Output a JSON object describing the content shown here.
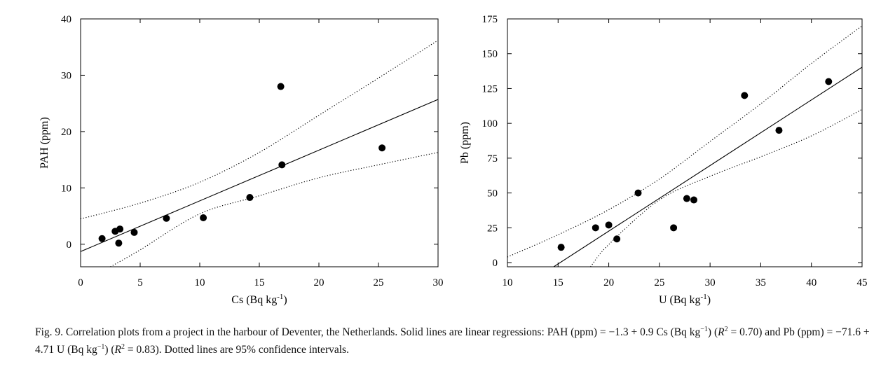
{
  "chart_data": [
    {
      "type": "scatter",
      "xlabel": "Cs (Bq kg",
      "xlabel_sup": "-1",
      "xlabel_end": ")",
      "ylabel": "PAH (ppm)",
      "xlim": [
        0,
        30
      ],
      "ylim": [
        -4,
        40
      ],
      "xticks": [
        0,
        5,
        10,
        15,
        20,
        25,
        30
      ],
      "yticks": [
        0,
        10,
        20,
        30,
        40
      ],
      "points": [
        {
          "x": 1.8,
          "y": 1.0
        },
        {
          "x": 2.9,
          "y": 2.3
        },
        {
          "x": 3.2,
          "y": 0.2
        },
        {
          "x": 3.3,
          "y": 2.7
        },
        {
          "x": 4.5,
          "y": 2.1
        },
        {
          "x": 7.2,
          "y": 4.6
        },
        {
          "x": 10.3,
          "y": 4.7
        },
        {
          "x": 14.2,
          "y": 8.3
        },
        {
          "x": 16.8,
          "y": 28.0
        },
        {
          "x": 16.9,
          "y": 14.1
        },
        {
          "x": 25.3,
          "y": 17.1
        }
      ],
      "regression": {
        "intercept": -1.3,
        "slope": 0.9
      },
      "ci_upper": [
        [
          0,
          4.5
        ],
        [
          5,
          7.3
        ],
        [
          10,
          11.0
        ],
        [
          15,
          16.3
        ],
        [
          20,
          22.9
        ],
        [
          25,
          29.5
        ],
        [
          30,
          36.2
        ]
      ],
      "ci_lower": [
        [
          2.5,
          -4.0
        ],
        [
          5,
          -1.0
        ],
        [
          10,
          5.4
        ],
        [
          15,
          8.6
        ],
        [
          20,
          11.8
        ],
        [
          25,
          14.1
        ],
        [
          30,
          16.3
        ]
      ]
    },
    {
      "type": "scatter",
      "xlabel": "U (Bq kg",
      "xlabel_sup": "-1",
      "xlabel_end": ")",
      "ylabel": "Pb (ppm)",
      "xlim": [
        10,
        45
      ],
      "ylim": [
        -3,
        175
      ],
      "xticks": [
        10,
        15,
        20,
        25,
        30,
        35,
        40,
        45
      ],
      "yticks": [
        0,
        25,
        50,
        75,
        100,
        125,
        150,
        175
      ],
      "points": [
        {
          "x": 15.3,
          "y": 11
        },
        {
          "x": 18.7,
          "y": 25
        },
        {
          "x": 20.0,
          "y": 27
        },
        {
          "x": 20.8,
          "y": 17
        },
        {
          "x": 22.9,
          "y": 50
        },
        {
          "x": 26.4,
          "y": 25
        },
        {
          "x": 27.7,
          "y": 46
        },
        {
          "x": 28.4,
          "y": 45
        },
        {
          "x": 33.4,
          "y": 120
        },
        {
          "x": 36.8,
          "y": 95
        },
        {
          "x": 41.7,
          "y": 130
        }
      ],
      "regression": {
        "intercept": -71.6,
        "slope": 4.71
      },
      "ci_upper": [
        [
          10,
          4
        ],
        [
          15,
          20
        ],
        [
          20,
          38
        ],
        [
          25,
          60
        ],
        [
          30,
          87
        ],
        [
          35,
          114
        ],
        [
          40,
          143
        ],
        [
          45,
          170
        ]
      ],
      "ci_lower": [
        [
          18.2,
          -3
        ],
        [
          20,
          13
        ],
        [
          25,
          45
        ],
        [
          30,
          62
        ],
        [
          35,
          76
        ],
        [
          40,
          91
        ],
        [
          45,
          110
        ]
      ]
    }
  ],
  "caption": {
    "prefix": "Fig. 9. Correlation plots from a project in the harbour of Deventer, the Netherlands. Solid lines are linear regressions: PAH (ppm) = −1.3 + 0.9 Cs (Bq kg",
    "sup1": "−1",
    "mid1": ") (",
    "r2a_R": "R",
    "r2a_sup": "2",
    "r2a_val": " = 0.70) and Pb (ppm) = −71.6 + 4.71 U (Bq kg",
    "sup2": "−1",
    "mid2": ") (",
    "r2b_R": "R",
    "r2b_sup": "2",
    "suffix": " = 0.83). Dotted lines are 95% confidence intervals."
  }
}
